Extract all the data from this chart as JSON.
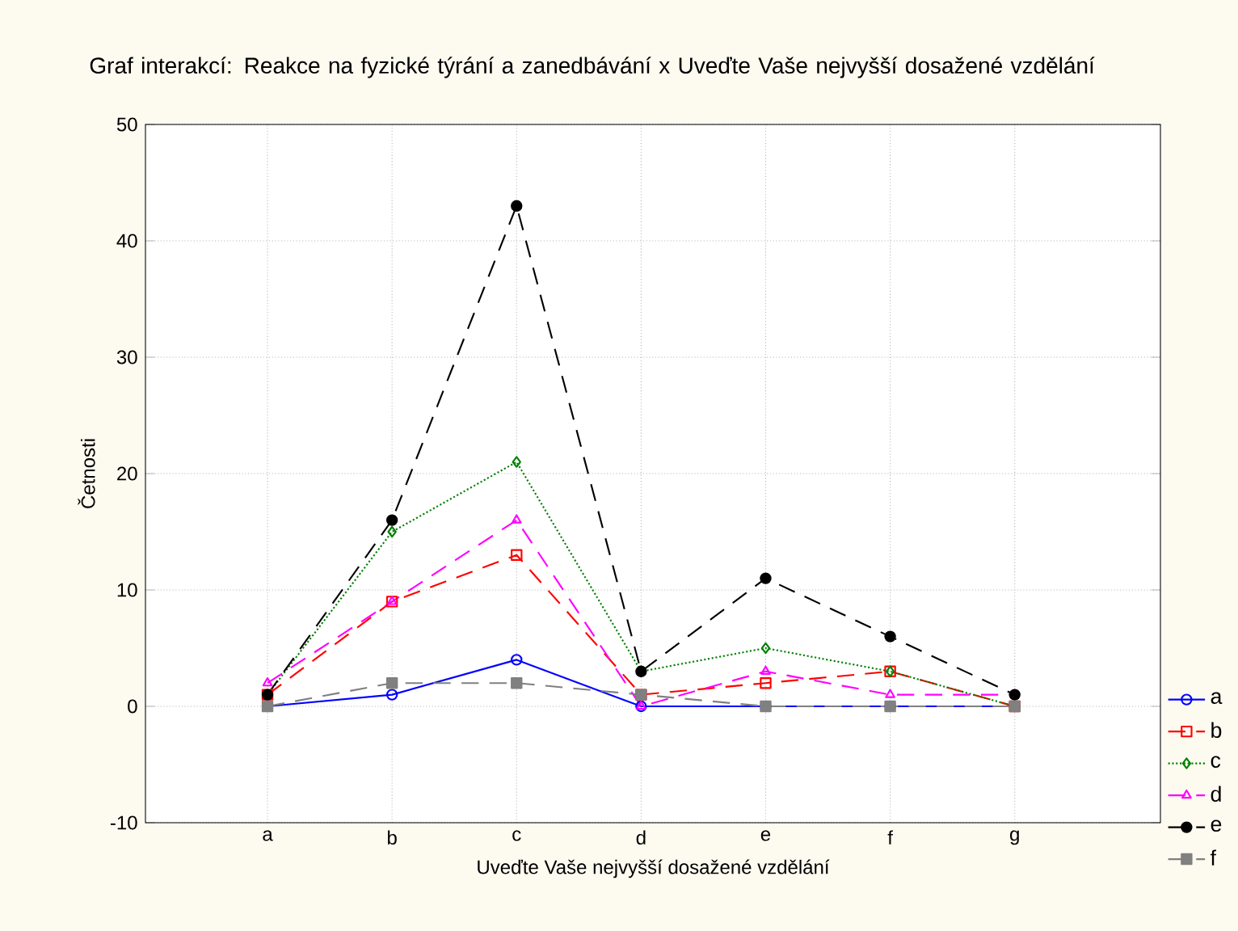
{
  "chart_data": {
    "type": "line",
    "title": "Graf interakcí: Reakce na fyzické týrání a zanedbávání x Uveďte Vaše nejvyšší dosažené vzdělání",
    "xlabel": "Uveďte Vaše nejvyšší dosažené vzdělání",
    "ylabel": "Četnosti",
    "categories": [
      "a",
      "b",
      "c",
      "d",
      "e",
      "f",
      "g"
    ],
    "series": [
      {
        "name": "a",
        "color": "#0000ff",
        "marker": "circle",
        "line_style": "solid",
        "values": [
          0,
          1,
          4,
          0,
          0,
          0,
          0
        ]
      },
      {
        "name": "b",
        "color": "#ff0000",
        "marker": "square",
        "line_style": "dashed",
        "values": [
          1,
          9,
          13,
          1,
          2,
          3,
          0
        ]
      },
      {
        "name": "c",
        "color": "#008000",
        "marker": "diamond",
        "line_style": "dotted",
        "values": [
          1,
          15,
          21,
          3,
          5,
          3,
          0
        ]
      },
      {
        "name": "d",
        "color": "#ff00ff",
        "marker": "triangle",
        "line_style": "dashed",
        "values": [
          2,
          9,
          16,
          0,
          3,
          1,
          1
        ]
      },
      {
        "name": "e",
        "color": "#000000",
        "marker": "circle",
        "line_style": "dashed",
        "values": [
          1,
          16,
          43,
          3,
          11,
          6,
          1
        ]
      },
      {
        "name": "f",
        "color": "#808080",
        "marker": "square",
        "line_style": "dashed",
        "values": [
          0,
          2,
          2,
          1,
          0,
          0,
          0
        ]
      }
    ],
    "ylim": [
      -10,
      50
    ],
    "yticks": [
      -10,
      0,
      10,
      20,
      30,
      40,
      50
    ],
    "grid": true,
    "legend": "right"
  }
}
